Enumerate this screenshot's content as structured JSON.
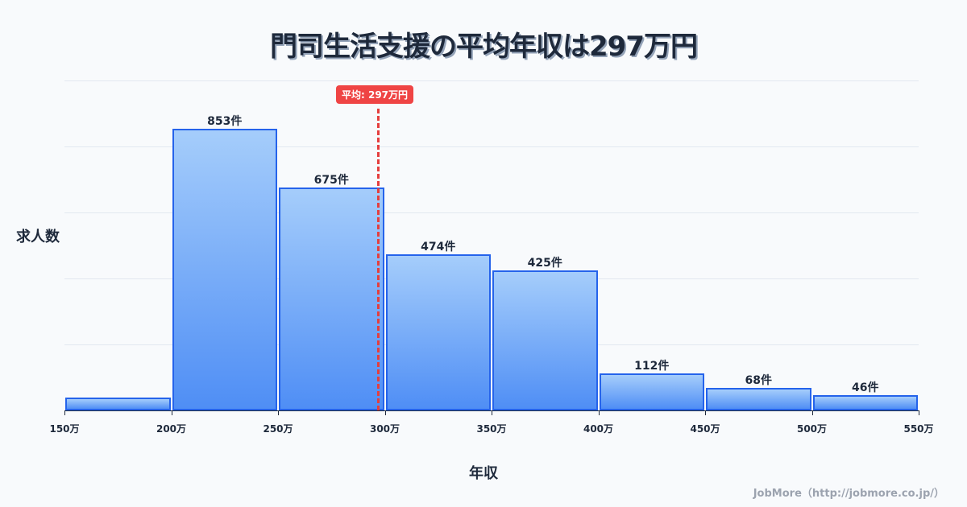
{
  "title": "門司生活支援の平均年収は297万円",
  "y_axis_label": "求人数",
  "x_axis_label": "年収",
  "mean_label": "平均: 297万円",
  "credit": "JobMore（http://jobmore.co.jp/）",
  "colors": {
    "bar_border": "#2563eb",
    "bar_top": "#a5cdfb",
    "bar_bottom": "#4f8ef5",
    "mean_line": "#e53e3e",
    "title": "#1e293b"
  },
  "chart_data": {
    "type": "bar",
    "title": "門司生活支援の平均年収は297万円",
    "xlabel": "年収",
    "ylabel": "求人数",
    "categories": [
      "150-200万",
      "200-250万",
      "250-300万",
      "300-350万",
      "350-400万",
      "400-450万",
      "450-500万",
      "500-550万"
    ],
    "values": [
      39,
      853,
      675,
      474,
      425,
      112,
      68,
      46
    ],
    "value_labels": [
      "",
      "853件",
      "675件",
      "474件",
      "425件",
      "112件",
      "68件",
      "46件"
    ],
    "x_ticks": [
      "150万",
      "200万",
      "250万",
      "300万",
      "350万",
      "400万",
      "450万",
      "500万",
      "550万"
    ],
    "ylim": [
      0,
      1000
    ],
    "grid": true,
    "mean": 297,
    "mean_annotation": "平均: 297万円"
  }
}
